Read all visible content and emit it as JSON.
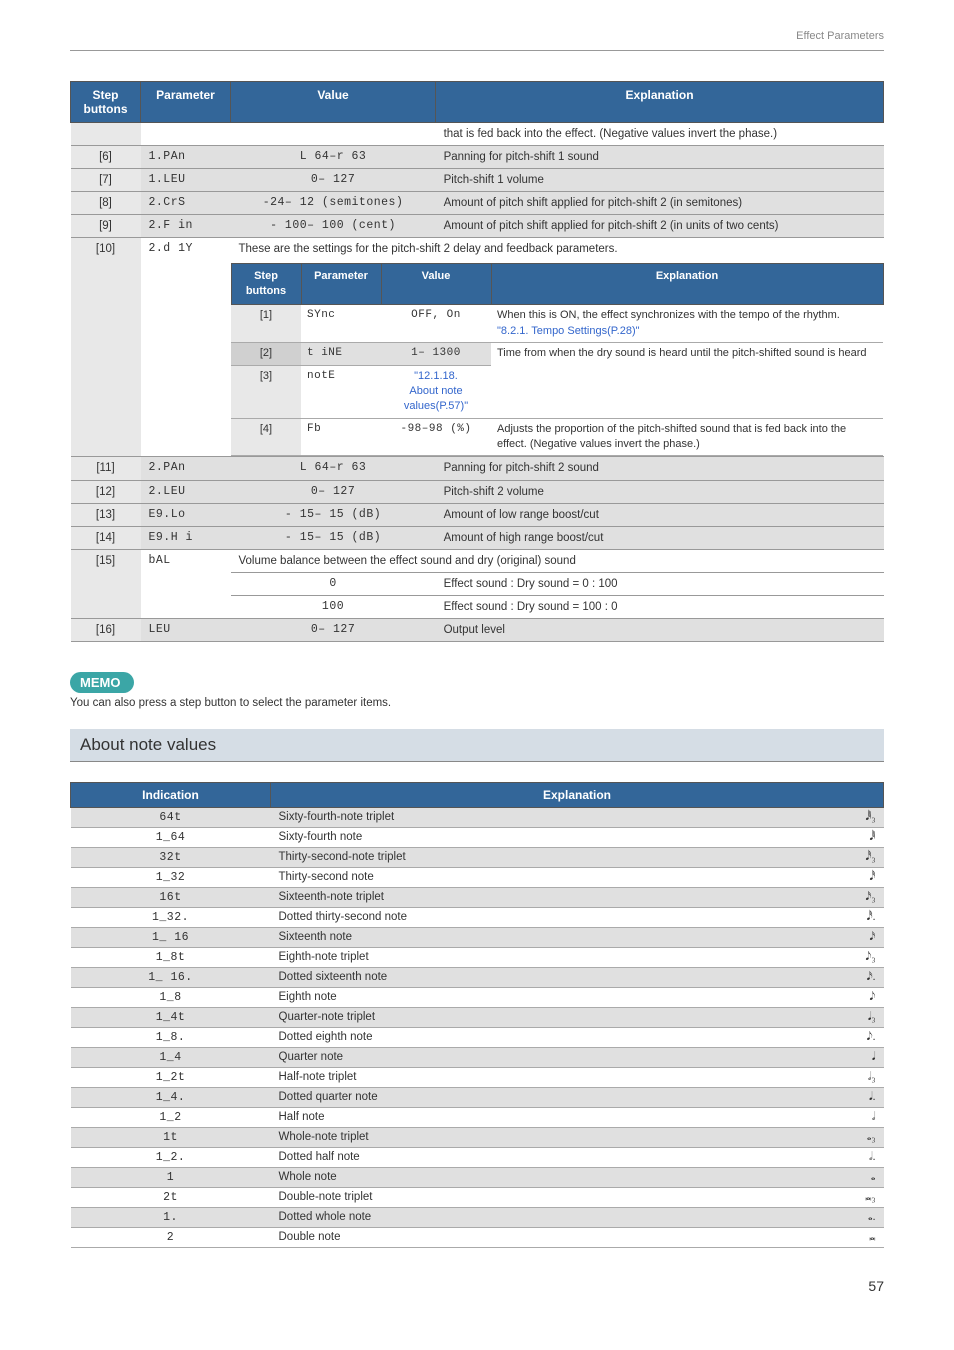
{
  "header": {
    "breadcrumb": "Effect Parameters"
  },
  "colors": {
    "header_bg": "#336699",
    "header_fg": "#ffffff",
    "row_shade": "#e0e0e0",
    "section_bg": "#d5dde5",
    "memo_bg": "#3ba6a6",
    "link": "#3366cc",
    "border": "#999999"
  },
  "main": {
    "headers": {
      "step": "Step buttons",
      "param": "Parameter",
      "value": "Value",
      "expl": "Explanation"
    },
    "continuation_expl": "that is fed back into the effect. (Negative values invert the phase.)",
    "rows": [
      {
        "step": "[6]",
        "param": "1.PAn",
        "value": "L 64–r 63",
        "expl": "Panning for pitch-shift 1 sound",
        "shade": true
      },
      {
        "step": "[7]",
        "param": "1.LEU",
        "value": "0– 127",
        "expl": "Pitch-shift 1 volume",
        "shade": true
      },
      {
        "step": "[8]",
        "param": "2.CrS",
        "value": "-24– 12 (semitones)",
        "expl": "Amount of pitch shift applied for pitch-shift 2 (in semitones)",
        "shade": true
      },
      {
        "step": "[9]",
        "param": "2.F in",
        "value": "- 100– 100 (cent)",
        "expl": "Amount of pitch shift applied for pitch-shift 2 (in units of two cents)",
        "shade": true
      }
    ],
    "row10": {
      "step": "[10]",
      "param": "2.d 1Y",
      "intro": "These are the settings for the pitch-shift 2 delay and feedback parameters.",
      "inner_headers": {
        "step": "Step buttons",
        "param": "Parameter",
        "value": "Value",
        "expl": "Explanation"
      },
      "inner_rows": [
        {
          "step": "[1]",
          "param": "SYnc",
          "value": "OFF, On",
          "expl_a": "When this is ON, the effect synchronizes with the tempo of the rhythm.",
          "expl_b_link": "\"8.2.1. Tempo Settings(P.28)\""
        },
        {
          "step": "[2]",
          "param": "t iNE",
          "value": "1– 1300",
          "expl": "Time from when the dry sound is heard until the",
          "shade": true
        },
        {
          "step": "[3]",
          "param": "notE",
          "value_a_link": "\"12.1.18.",
          "value_b_link": "About note",
          "value_c_link": "values(P.57)\"",
          "expl": "pitch-shifted sound is heard"
        },
        {
          "step": "[4]",
          "param": "Fb",
          "value": "-98–98 (%)",
          "expl": "Adjusts the proportion of the pitch-shifted sound that is fed back into the effect. (Negative values invert the phase.)"
        }
      ]
    },
    "rows2": [
      {
        "step": "[11]",
        "param": "2.PAn",
        "value": "L 64–r 63",
        "expl": "Panning for pitch-shift 2 sound",
        "shade": true
      },
      {
        "step": "[12]",
        "param": "2.LEU",
        "value": "0– 127",
        "expl": "Pitch-shift 2 volume",
        "shade": true
      },
      {
        "step": "[13]",
        "param": "E9.Lo",
        "value": "- 15– 15 (dB)",
        "expl": "Amount of low range boost/cut",
        "shade": true
      },
      {
        "step": "[14]",
        "param": "E9.H i",
        "value": "- 15– 15 (dB)",
        "expl": "Amount of high range boost/cut",
        "shade": true
      }
    ],
    "row15": {
      "step": "[15]",
      "param": "bAL",
      "intro": "Volume balance between the effect sound and dry (original) sound",
      "sub": [
        {
          "value": "0",
          "expl": "Effect sound : Dry sound = 0 : 100"
        },
        {
          "value": "100",
          "expl": "Effect sound : Dry sound = 100 : 0"
        }
      ]
    },
    "row16": {
      "step": "[16]",
      "param": "LEU",
      "value": "0– 127",
      "expl": "Output level",
      "shade": true
    }
  },
  "memo": {
    "badge": "MEMO",
    "text": "You can also press a step button to select the parameter items."
  },
  "section": {
    "heading": "About note values"
  },
  "notes": {
    "headers": {
      "indication": "Indication",
      "expl": "Explanation"
    },
    "rows": [
      {
        "ind": "64t",
        "expl": "Sixty-fourth-note triplet",
        "sym": "𝅘𝅥𝅱₃",
        "shade": true
      },
      {
        "ind": "1_64",
        "expl": "Sixty-fourth note",
        "sym": "𝅘𝅥𝅱"
      },
      {
        "ind": "32t",
        "expl": "Thirty-second-note triplet",
        "sym": "𝅘𝅥𝅰₃",
        "shade": true
      },
      {
        "ind": "1_32",
        "expl": "Thirty-second note",
        "sym": "𝅘𝅥𝅰"
      },
      {
        "ind": "16t",
        "expl": "Sixteenth-note triplet",
        "sym": "𝅘𝅥𝅯₃",
        "shade": true
      },
      {
        "ind": "1_32.",
        "expl": "Dotted thirty-second note",
        "sym": "𝅘𝅥𝅰."
      },
      {
        "ind": "1_ 16",
        "expl": "Sixteenth note",
        "sym": "𝅘𝅥𝅯",
        "shade": true
      },
      {
        "ind": "1_8t",
        "expl": "Eighth-note triplet",
        "sym": "𝅘𝅥𝅮₃"
      },
      {
        "ind": "1_ 16.",
        "expl": "Dotted sixteenth note",
        "sym": "𝅘𝅥𝅯.",
        "shade": true
      },
      {
        "ind": "1_8",
        "expl": "Eighth note",
        "sym": "𝅘𝅥𝅮"
      },
      {
        "ind": "1_4t",
        "expl": "Quarter-note triplet",
        "sym": "𝅘𝅥₃",
        "shade": true
      },
      {
        "ind": "1_8.",
        "expl": "Dotted eighth note",
        "sym": "𝅘𝅥𝅮."
      },
      {
        "ind": "1_4",
        "expl": "Quarter note",
        "sym": "𝅘𝅥",
        "shade": true
      },
      {
        "ind": "1_2t",
        "expl": "Half-note triplet",
        "sym": "𝅗𝅥₃"
      },
      {
        "ind": "1_4.",
        "expl": "Dotted quarter note",
        "sym": "𝅘𝅥.",
        "shade": true
      },
      {
        "ind": "1_2",
        "expl": "Half note",
        "sym": "𝅗𝅥"
      },
      {
        "ind": "1t",
        "expl": "Whole-note triplet",
        "sym": "𝅝₃",
        "shade": true
      },
      {
        "ind": "1_2.",
        "expl": "Dotted half note",
        "sym": "𝅗𝅥."
      },
      {
        "ind": "1",
        "expl": "Whole note",
        "sym": "𝅝",
        "shade": true
      },
      {
        "ind": "2t",
        "expl": "Double-note triplet",
        "sym": "𝅜₃"
      },
      {
        "ind": "1.",
        "expl": "Dotted whole note",
        "sym": "𝅝.",
        "shade": true
      },
      {
        "ind": "2",
        "expl": "Double note",
        "sym": "𝅜"
      }
    ]
  },
  "page": "57"
}
